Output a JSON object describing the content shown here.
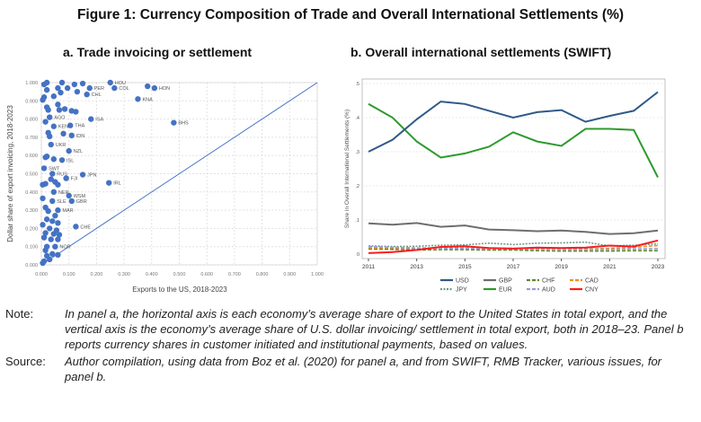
{
  "figure_title": "Figure 1: Currency Composition of Trade and Overall International Settlements (%)",
  "chart_data": [
    {
      "type": "scatter",
      "title": "a. Trade invoicing or settlement",
      "xlabel": "Exports to the US, 2018-2023",
      "ylabel": "Dollar share of export invoicing, 2018-2023",
      "xlim": [
        0,
        1
      ],
      "ylim": [
        0,
        1
      ],
      "xticks": [
        "0.000",
        "0.100",
        "0.200",
        "0.300",
        "0.400",
        "0.500",
        "0.600",
        "0.700",
        "0.800",
        "0.900",
        "1.000"
      ],
      "yticks": [
        "0.000",
        "0.100",
        "0.200",
        "0.300",
        "0.400",
        "0.500",
        "0.600",
        "0.700",
        "0.800",
        "0.900",
        "1.000"
      ],
      "grid": true,
      "reference_line": "45-degree line",
      "color": "#4472C4",
      "points": [
        {
          "x": 0.25,
          "y": 1.0,
          "label": "HOU"
        },
        {
          "x": 0.265,
          "y": 0.97,
          "label": "COL"
        },
        {
          "x": 0.385,
          "y": 0.98,
          "label": ""
        },
        {
          "x": 0.41,
          "y": 0.97,
          "label": "HON"
        },
        {
          "x": 0.35,
          "y": 0.91,
          "label": "KNA"
        },
        {
          "x": 0.175,
          "y": 0.97,
          "label": "PER"
        },
        {
          "x": 0.165,
          "y": 0.935,
          "label": "CHL"
        },
        {
          "x": 0.18,
          "y": 0.8,
          "label": "ISA"
        },
        {
          "x": 0.48,
          "y": 0.78,
          "label": "BHS"
        },
        {
          "x": 0.105,
          "y": 0.765,
          "label": "THA"
        },
        {
          "x": 0.11,
          "y": 0.71,
          "label": "IDN"
        },
        {
          "x": 0.035,
          "y": 0.66,
          "label": "UKR"
        },
        {
          "x": 0.1,
          "y": 0.625,
          "label": "NZL"
        },
        {
          "x": 0.075,
          "y": 0.575,
          "label": "ISL"
        },
        {
          "x": 0.15,
          "y": 0.495,
          "label": "JPN"
        },
        {
          "x": 0.245,
          "y": 0.45,
          "label": "IRL"
        },
        {
          "x": 0.04,
          "y": 0.5,
          "label": "RUS"
        },
        {
          "x": 0.045,
          "y": 0.4,
          "label": "NER"
        },
        {
          "x": 0.1,
          "y": 0.38,
          "label": "WSM"
        },
        {
          "x": 0.11,
          "y": 0.35,
          "label": "GBR"
        },
        {
          "x": 0.04,
          "y": 0.35,
          "label": "SLE"
        },
        {
          "x": 0.125,
          "y": 0.21,
          "label": "CHE"
        },
        {
          "x": 0.03,
          "y": 0.81,
          "label": "AGO"
        },
        {
          "x": 0.045,
          "y": 0.76,
          "label": "KEN"
        },
        {
          "x": 0.01,
          "y": 0.53,
          "label": "SWT"
        },
        {
          "x": 0.09,
          "y": 0.475,
          "label": "FJI"
        },
        {
          "x": 0.06,
          "y": 0.3,
          "label": "MAR"
        },
        {
          "x": 0.05,
          "y": 0.1,
          "label": "NOR"
        },
        {
          "x": 0.02,
          "y": 1.0,
          "label": ""
        },
        {
          "x": 0.01,
          "y": 0.99,
          "label": ""
        },
        {
          "x": 0.075,
          "y": 1.0,
          "label": ""
        },
        {
          "x": 0.12,
          "y": 0.99,
          "label": ""
        },
        {
          "x": 0.15,
          "y": 0.995,
          "label": ""
        },
        {
          "x": 0.02,
          "y": 0.96,
          "label": ""
        },
        {
          "x": 0.06,
          "y": 0.97,
          "label": ""
        },
        {
          "x": 0.095,
          "y": 0.97,
          "label": ""
        },
        {
          "x": 0.13,
          "y": 0.95,
          "label": ""
        },
        {
          "x": 0.07,
          "y": 0.945,
          "label": ""
        },
        {
          "x": 0.045,
          "y": 0.925,
          "label": ""
        },
        {
          "x": 0.01,
          "y": 0.92,
          "label": ""
        },
        {
          "x": 0.005,
          "y": 0.905,
          "label": ""
        },
        {
          "x": 0.06,
          "y": 0.88,
          "label": ""
        },
        {
          "x": 0.02,
          "y": 0.865,
          "label": ""
        },
        {
          "x": 0.025,
          "y": 0.85,
          "label": ""
        },
        {
          "x": 0.065,
          "y": 0.85,
          "label": ""
        },
        {
          "x": 0.085,
          "y": 0.855,
          "label": ""
        },
        {
          "x": 0.11,
          "y": 0.845,
          "label": ""
        },
        {
          "x": 0.125,
          "y": 0.84,
          "label": ""
        },
        {
          "x": 0.015,
          "y": 0.785,
          "label": ""
        },
        {
          "x": 0.025,
          "y": 0.725,
          "label": ""
        },
        {
          "x": 0.03,
          "y": 0.705,
          "label": ""
        },
        {
          "x": 0.08,
          "y": 0.72,
          "label": ""
        },
        {
          "x": 0.02,
          "y": 0.595,
          "label": ""
        },
        {
          "x": 0.015,
          "y": 0.59,
          "label": ""
        },
        {
          "x": 0.045,
          "y": 0.58,
          "label": ""
        },
        {
          "x": 0.035,
          "y": 0.47,
          "label": ""
        },
        {
          "x": 0.005,
          "y": 0.44,
          "label": ""
        },
        {
          "x": 0.015,
          "y": 0.445,
          "label": ""
        },
        {
          "x": 0.05,
          "y": 0.455,
          "label": ""
        },
        {
          "x": 0.06,
          "y": 0.44,
          "label": ""
        },
        {
          "x": 0.005,
          "y": 0.365,
          "label": ""
        },
        {
          "x": 0.015,
          "y": 0.315,
          "label": ""
        },
        {
          "x": 0.025,
          "y": 0.295,
          "label": ""
        },
        {
          "x": 0.05,
          "y": 0.27,
          "label": ""
        },
        {
          "x": 0.02,
          "y": 0.25,
          "label": ""
        },
        {
          "x": 0.04,
          "y": 0.24,
          "label": ""
        },
        {
          "x": 0.06,
          "y": 0.23,
          "label": ""
        },
        {
          "x": 0.005,
          "y": 0.22,
          "label": ""
        },
        {
          "x": 0.03,
          "y": 0.2,
          "label": ""
        },
        {
          "x": 0.055,
          "y": 0.19,
          "label": ""
        },
        {
          "x": 0.015,
          "y": 0.175,
          "label": ""
        },
        {
          "x": 0.045,
          "y": 0.17,
          "label": ""
        },
        {
          "x": 0.065,
          "y": 0.165,
          "label": ""
        },
        {
          "x": 0.01,
          "y": 0.15,
          "label": ""
        },
        {
          "x": 0.035,
          "y": 0.14,
          "label": ""
        },
        {
          "x": 0.06,
          "y": 0.14,
          "label": ""
        },
        {
          "x": 0.02,
          "y": 0.1,
          "label": ""
        },
        {
          "x": 0.015,
          "y": 0.08,
          "label": ""
        },
        {
          "x": 0.04,
          "y": 0.06,
          "label": ""
        },
        {
          "x": 0.06,
          "y": 0.055,
          "label": ""
        },
        {
          "x": 0.02,
          "y": 0.05,
          "label": ""
        },
        {
          "x": 0.03,
          "y": 0.03,
          "label": ""
        },
        {
          "x": 0.01,
          "y": 0.02,
          "label": ""
        },
        {
          "x": 0.005,
          "y": 0.01,
          "label": ""
        }
      ]
    },
    {
      "type": "line",
      "title": "b. Overall international settlements (SWIFT)",
      "xlabel": "",
      "ylabel": "Share in Overall International Settlements (%)",
      "x": [
        2011,
        2012,
        2013,
        2014,
        2015,
        2016,
        2017,
        2018,
        2019,
        2020,
        2021,
        2022,
        2023
      ],
      "xticks": [
        "2011",
        "2013",
        "2015",
        "2017",
        "2019",
        "2021",
        "2023"
      ],
      "yticks": [
        "0",
        ".1",
        ".2",
        ".3",
        ".4",
        ".5"
      ],
      "ylim": [
        0,
        0.5
      ],
      "grid": true,
      "legend_position": "bottom",
      "series": [
        {
          "name": "USD",
          "color": "#2E5A87",
          "dash": "solid",
          "values": [
            0.3,
            0.335,
            0.395,
            0.447,
            0.44,
            0.42,
            0.4,
            0.416,
            0.422,
            0.388,
            0.405,
            0.42,
            0.475
          ]
        },
        {
          "name": "GBP",
          "color": "#6E6E6E",
          "dash": "solid",
          "values": [
            0.09,
            0.086,
            0.091,
            0.08,
            0.084,
            0.072,
            0.07,
            0.067,
            0.069,
            0.065,
            0.059,
            0.061,
            0.069
          ]
        },
        {
          "name": "CHF",
          "color": "#5C8A2E",
          "dash": "dash",
          "values": [
            0.015,
            0.014,
            0.012,
            0.013,
            0.013,
            0.012,
            0.012,
            0.01,
            0.009,
            0.009,
            0.009,
            0.01,
            0.01
          ]
        },
        {
          "name": "CAD",
          "color": "#E8902A",
          "dash": "dash",
          "values": [
            0.018,
            0.018,
            0.016,
            0.018,
            0.018,
            0.017,
            0.017,
            0.015,
            0.016,
            0.015,
            0.017,
            0.02,
            0.025
          ]
        },
        {
          "name": "JPY",
          "color": "#6F9A8A",
          "dash": "dot",
          "values": [
            0.024,
            0.022,
            0.023,
            0.026,
            0.027,
            0.032,
            0.028,
            0.032,
            0.033,
            0.035,
            0.024,
            0.026,
            0.03
          ]
        },
        {
          "name": "EUR",
          "color": "#2E9A2E",
          "dash": "solid",
          "values": [
            0.44,
            0.4,
            0.33,
            0.283,
            0.295,
            0.315,
            0.357,
            0.33,
            0.317,
            0.367,
            0.367,
            0.364,
            0.225
          ]
        },
        {
          "name": "AUD",
          "color": "#9A9AD8",
          "dash": "dash",
          "values": [
            0.022,
            0.02,
            0.018,
            0.018,
            0.017,
            0.017,
            0.015,
            0.015,
            0.014,
            0.014,
            0.014,
            0.015,
            0.016
          ]
        },
        {
          "name": "CNY",
          "color": "#FF1A1A",
          "dash": "solid",
          "values": [
            0.003,
            0.006,
            0.012,
            0.021,
            0.023,
            0.018,
            0.016,
            0.019,
            0.018,
            0.019,
            0.025,
            0.022,
            0.04
          ]
        }
      ]
    }
  ],
  "note": {
    "label": "Note:",
    "text": "In panel a, the horizontal axis is each economy’s average share of export to the United States in total export, and the vertical axis is the economy’s average share of U.S. dollar invoicing/ settlement in total export, both in 2018–23. Panel b reports currency shares in customer initiated and institutional payments, based on values."
  },
  "source": {
    "label": "Source:",
    "text": "Author compilation, using data from Boz et al. (2020) for panel a, and from SWIFT, RMB Tracker, various issues, for panel b."
  }
}
